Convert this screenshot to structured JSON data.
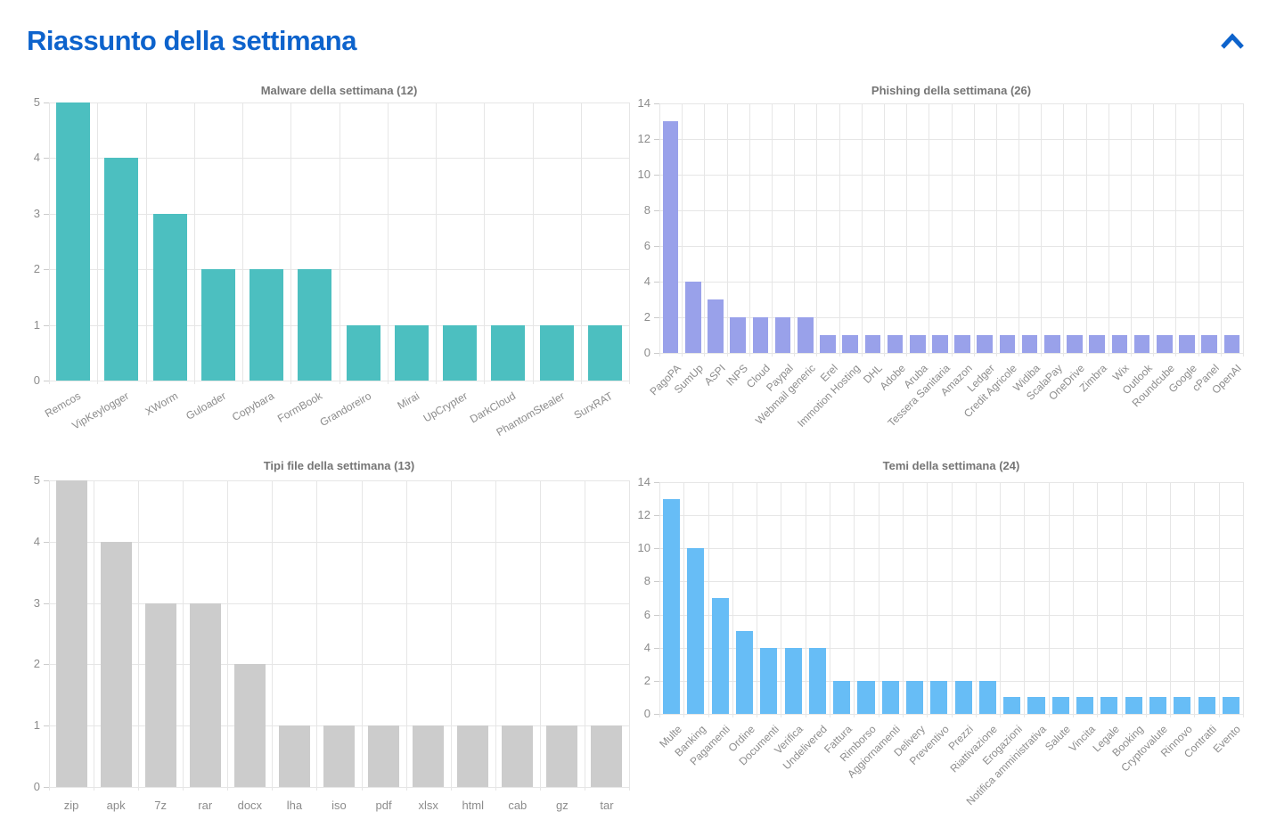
{
  "page": {
    "title": "Riassunto della settimana",
    "accent_color": "#0d63cc"
  },
  "header": {
    "collapse_icon": "chevron-up"
  },
  "chart_data": [
    {
      "type": "bar",
      "title": "Malware della settimana (12)",
      "categories": [
        "Remcos",
        "VipKeylogger",
        "XWorm",
        "Guloader",
        "Copybara",
        "FormBook",
        "Grandoreiro",
        "Mirai",
        "UpCrypter",
        "DarkCloud",
        "PhantomStealer",
        "SurxRAT"
      ],
      "values": [
        5,
        4,
        3,
        2,
        2,
        2,
        1,
        1,
        1,
        1,
        1,
        1
      ],
      "bar_color": "#4cbfc0",
      "xlabel": "",
      "ylabel": "",
      "ylim": [
        0,
        5
      ],
      "ytick_step": 1,
      "label_rotation": 30,
      "grid": true,
      "legend": "none"
    },
    {
      "type": "bar",
      "title": "Phishing della settimana (26)",
      "categories": [
        "PagoPA",
        "SumUp",
        "ASPI",
        "INPS",
        "Cloud",
        "Paypal",
        "Webmail generic",
        "Erel",
        "Immotion Hosting",
        "DHL",
        "Adobe",
        "Aruba",
        "Tessera Sanitaria",
        "Amazon",
        "Ledger",
        "Credit Agricole",
        "Widiba",
        "ScalaPay",
        "OneDrive",
        "Zimbra",
        "Wix",
        "Outlook",
        "Roundcube",
        "Google",
        "cPanel",
        "OpenAI"
      ],
      "values": [
        13,
        4,
        3,
        2,
        2,
        2,
        2,
        1,
        1,
        1,
        1,
        1,
        1,
        1,
        1,
        1,
        1,
        1,
        1,
        1,
        1,
        1,
        1,
        1,
        1,
        1
      ],
      "bar_color": "#99a1ea",
      "xlabel": "",
      "ylabel": "",
      "ylim": [
        0,
        14
      ],
      "ytick_step": 2,
      "label_rotation": 45,
      "grid": true,
      "legend": "none"
    },
    {
      "type": "bar",
      "title": "Tipi file della settimana (13)",
      "categories": [
        "zip",
        "apk",
        "7z",
        "rar",
        "docx",
        "lha",
        "iso",
        "pdf",
        "xlsx",
        "html",
        "cab",
        "gz",
        "tar"
      ],
      "values": [
        5,
        4,
        3,
        3,
        2,
        1,
        1,
        1,
        1,
        1,
        1,
        1,
        1
      ],
      "bar_color": "#cccccc",
      "xlabel": "",
      "ylabel": "",
      "ylim": [
        0,
        5
      ],
      "ytick_step": 1,
      "label_rotation": 0,
      "grid": true,
      "legend": "none"
    },
    {
      "type": "bar",
      "title": "Temi della settimana (24)",
      "categories": [
        "Multe",
        "Banking",
        "Pagamenti",
        "Ordine",
        "Documenti",
        "Verifica",
        "Undelivered",
        "Fattura",
        "Rimborso",
        "Aggiornamenti",
        "Delivery",
        "Preventivo",
        "Prezzi",
        "Riattivazione",
        "Erogazioni",
        "Notifica amministrativa",
        "Salute",
        "Vincita",
        "Legale",
        "Booking",
        "Cryptovalute",
        "Rinnovo",
        "Contratti",
        "Evento"
      ],
      "values": [
        13,
        10,
        7,
        5,
        4,
        4,
        4,
        2,
        2,
        2,
        2,
        2,
        2,
        2,
        1,
        1,
        1,
        1,
        1,
        1,
        1,
        1,
        1,
        1
      ],
      "bar_color": "#67bdf6",
      "xlabel": "",
      "ylabel": "",
      "ylim": [
        0,
        14
      ],
      "ytick_step": 2,
      "label_rotation": 45,
      "grid": true,
      "legend": "none"
    }
  ]
}
